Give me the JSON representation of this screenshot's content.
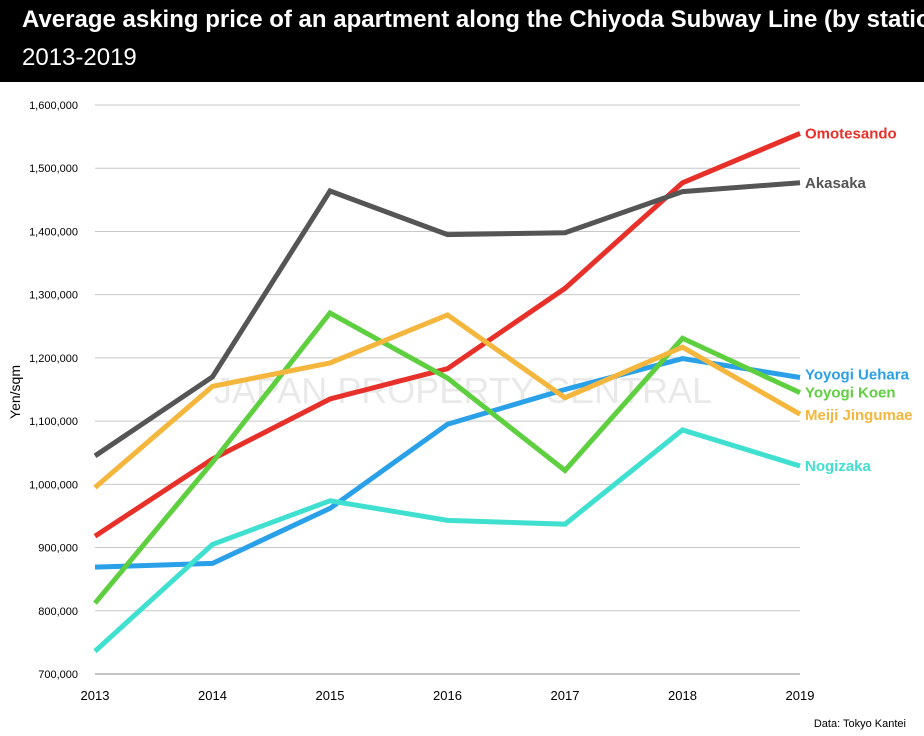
{
  "header": {
    "title": "Average asking price of an apartment along the Chiyoda Subway Line (by station)",
    "subtitle": "2013-2019"
  },
  "watermark": "JAPAN PROPERTY CENTRAL",
  "source": "Data: Tokyo Kantei",
  "chart_data": {
    "type": "line",
    "title": "Average asking price of an apartment along the Chiyoda Subway Line (by station)",
    "subtitle": "2013-2019",
    "xlabel": "",
    "ylabel": "Yen/sqm",
    "x": [
      "2013",
      "2014",
      "2015",
      "2016",
      "2017",
      "2018",
      "2019"
    ],
    "ylim": [
      700000,
      1600000
    ],
    "yticks": [
      700000,
      800000,
      900000,
      1000000,
      1100000,
      1200000,
      1300000,
      1400000,
      1500000,
      1600000
    ],
    "ytick_labels": [
      "700,000",
      "800,000",
      "900,000",
      "1,000,000",
      "1,100,000",
      "1,200,000",
      "1,300,000",
      "1,400,000",
      "1,500,000",
      "1,600,000"
    ],
    "grid": true,
    "legend": "right (labels at line ends)",
    "series": [
      {
        "name": "Omotesando",
        "color": "#e8302a",
        "values": [
          918000,
          1040000,
          1135000,
          1183000,
          1310000,
          1477000,
          1555000
        ]
      },
      {
        "name": "Akasaka",
        "color": "#555555",
        "values": [
          1045000,
          1170000,
          1464000,
          1395000,
          1398000,
          1463000,
          1477000
        ]
      },
      {
        "name": "Yoyogi Uehara",
        "color": "#2aa0e8",
        "values": [
          869000,
          875000,
          962000,
          1095000,
          1150000,
          1199000,
          1169000
        ]
      },
      {
        "name": "Yoyogi Koen",
        "color": "#5ecf3f",
        "values": [
          812000,
          1035000,
          1271000,
          1168000,
          1022000,
          1231000,
          1145000
        ]
      },
      {
        "name": "Meiji Jingumae",
        "color": "#f4b63c",
        "values": [
          995000,
          1155000,
          1192000,
          1268000,
          1137000,
          1217000,
          1111000
        ]
      },
      {
        "name": "Nogizaka",
        "color": "#3fe0cf",
        "values": [
          736000,
          905000,
          974000,
          943000,
          937000,
          1086000,
          1029000
        ]
      }
    ]
  }
}
